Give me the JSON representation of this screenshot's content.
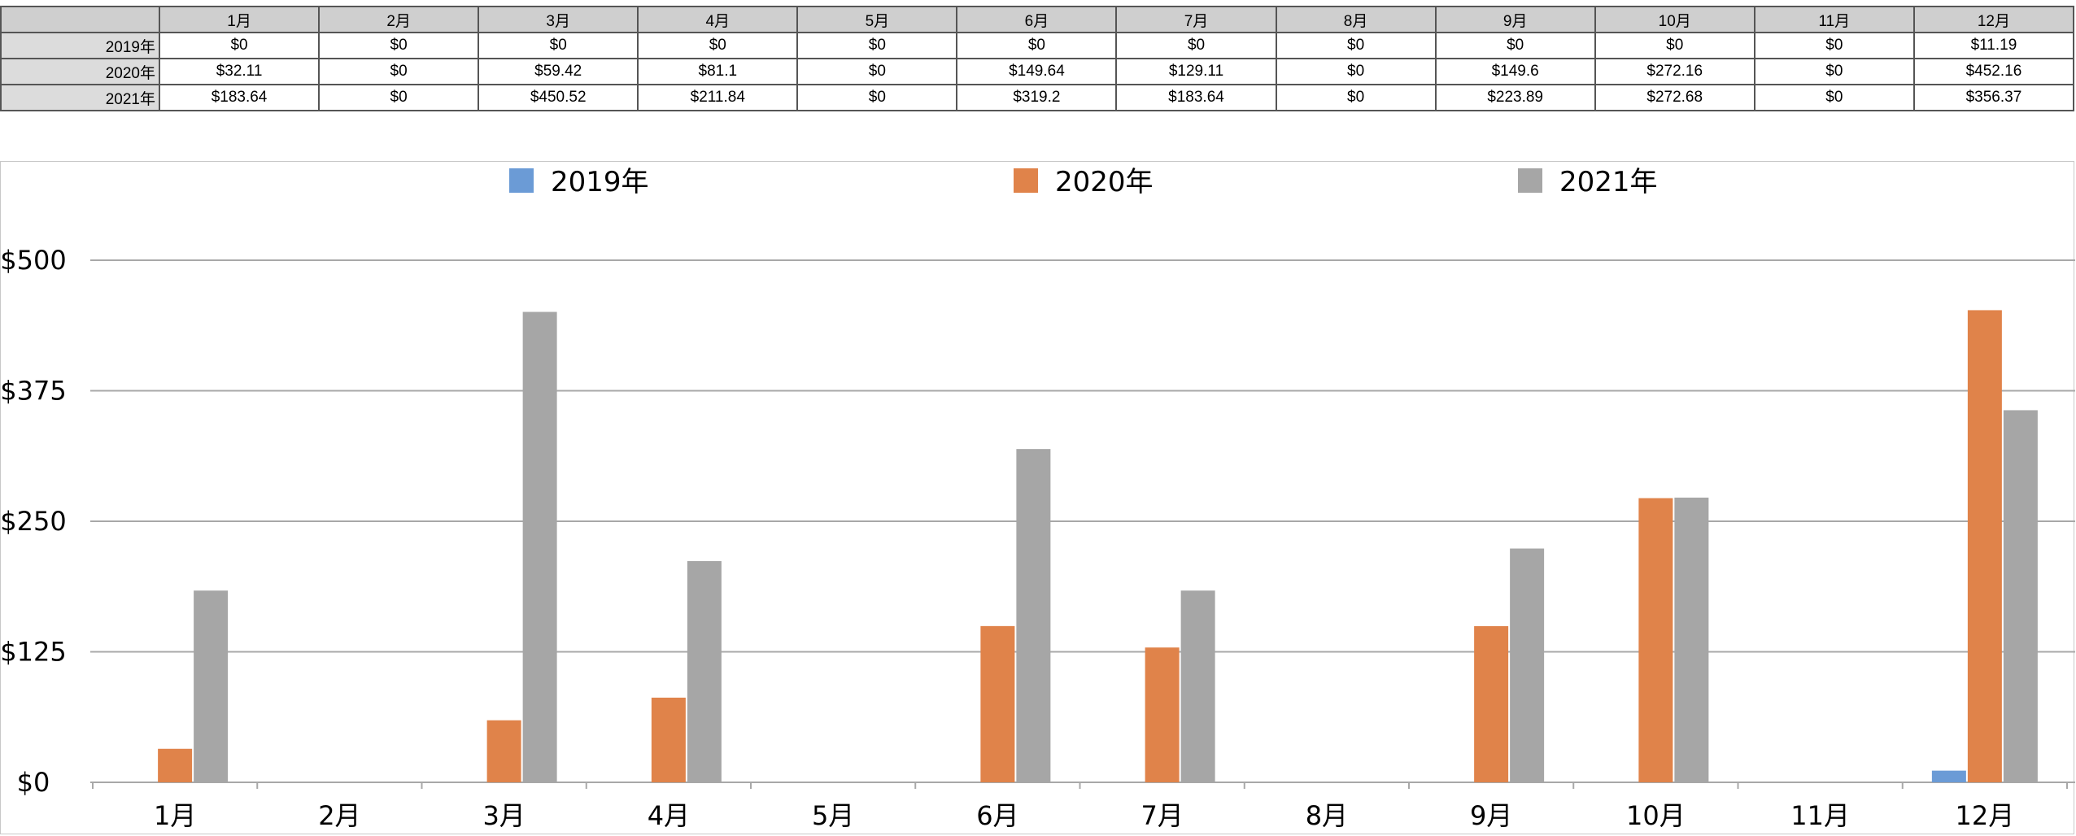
{
  "table": {
    "corner": "",
    "months": [
      "1月",
      "2月",
      "3月",
      "4月",
      "5月",
      "6月",
      "7月",
      "8月",
      "9月",
      "10月",
      "11月",
      "12月"
    ],
    "rows": [
      {
        "label": "2019年",
        "cells": [
          "$0",
          "$0",
          "$0",
          "$0",
          "$0",
          "$0",
          "$0",
          "$0",
          "$0",
          "$0",
          "$0",
          "$11.19"
        ]
      },
      {
        "label": "2020年",
        "cells": [
          "$32.11",
          "$0",
          "$59.42",
          "$81.1",
          "$0",
          "$149.64",
          "$129.11",
          "$0",
          "$149.6",
          "$272.16",
          "$0",
          "$452.16"
        ]
      },
      {
        "label": "2021年",
        "cells": [
          "$183.64",
          "$0",
          "$450.52",
          "$211.84",
          "$0",
          "$319.2",
          "$183.64",
          "$0",
          "$223.89",
          "$272.68",
          "$0",
          "$356.37"
        ]
      }
    ]
  },
  "chart_data": {
    "type": "bar",
    "categories": [
      "1月",
      "2月",
      "3月",
      "4月",
      "5月",
      "6月",
      "7月",
      "8月",
      "9月",
      "10月",
      "11月",
      "12月"
    ],
    "series": [
      {
        "name": "2019年",
        "color": "#6b9bd6",
        "values": [
          0,
          0,
          0,
          0,
          0,
          0,
          0,
          0,
          0,
          0,
          0,
          11.19
        ]
      },
      {
        "name": "2020年",
        "color": "#e0834a",
        "values": [
          32.11,
          0,
          59.42,
          81.1,
          0,
          149.64,
          129.11,
          0,
          149.6,
          272.16,
          0,
          452.16
        ]
      },
      {
        "name": "2021年",
        "color": "#a6a6a6",
        "values": [
          183.64,
          0,
          450.52,
          211.84,
          0,
          319.2,
          183.64,
          0,
          223.89,
          272.68,
          0,
          356.37
        ]
      }
    ],
    "ylim": [
      0,
      500
    ],
    "yticks": [
      0,
      125,
      250,
      375,
      500
    ],
    "ytick_labels": [
      "$0",
      "$125",
      "$250",
      "$375",
      "$500"
    ],
    "grid": true,
    "legend": "top",
    "title": "",
    "xlabel": "",
    "ylabel": ""
  }
}
